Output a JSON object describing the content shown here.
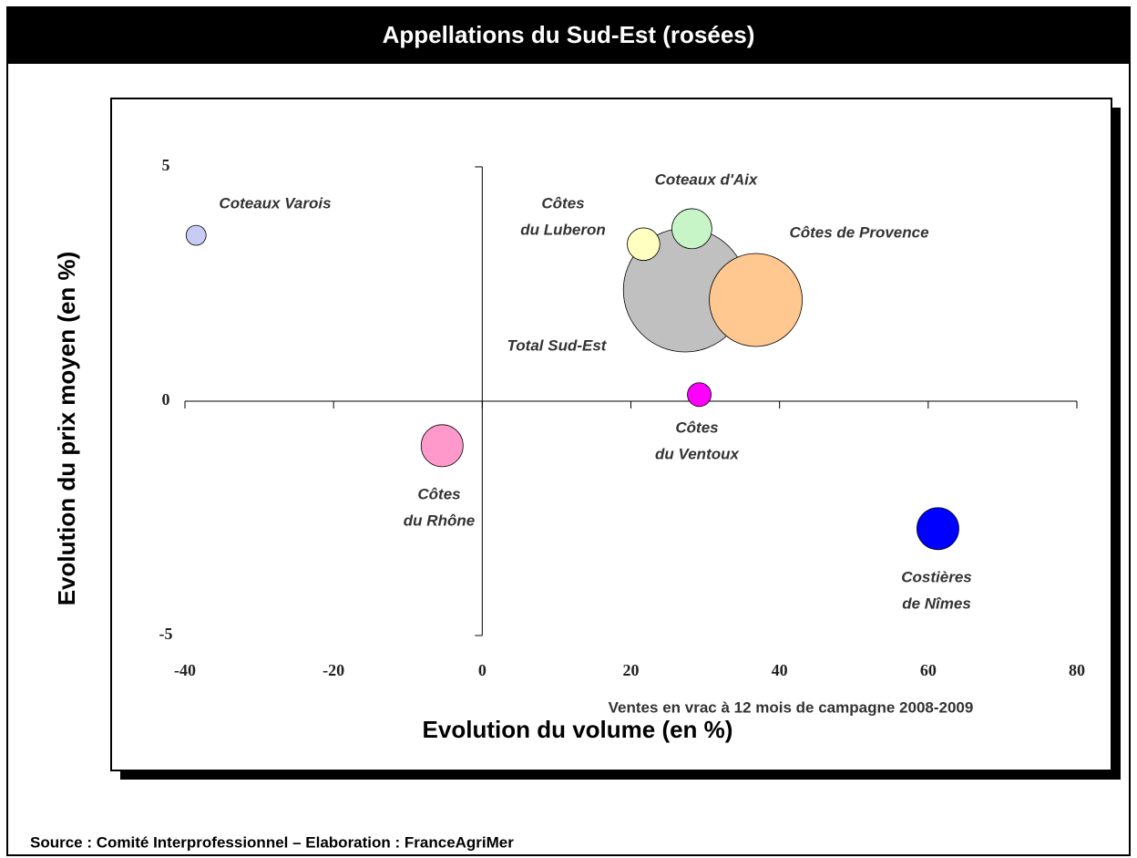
{
  "chart_data": {
    "type": "bubble",
    "title": "Appellations du Sud-Est (rosées)",
    "x_label": "Evolution du volume (en %)",
    "y_label": "Evolution du prix moyen (en %)",
    "annotation": "Ventes en vrac à 12 mois de campagne 2008-2009",
    "source": "Source : Comité Interprofessionnel – Elaboration : FranceAgriMer",
    "xlim": [
      -40,
      80
    ],
    "xticks": [
      -40,
      -20,
      0,
      20,
      40,
      60,
      80
    ],
    "ylim": [
      -5,
      5
    ],
    "yticks": [
      -5,
      0,
      5
    ],
    "points": [
      {
        "label": [
          "Coteaux Varois"
        ],
        "x": -38.5,
        "y": 3.54,
        "size": 1.2,
        "color": "#c8ccf5"
      },
      {
        "label": [
          "Total Sud-Est"
        ],
        "x": 27.3,
        "y": 2.37,
        "size": 46,
        "color": "#c0c0c0"
      },
      {
        "label": [
          "Côtes de Provence"
        ],
        "x": 36.8,
        "y": 2.16,
        "size": 26,
        "color": "#ffc890"
      },
      {
        "label": [
          "Côtes",
          "du Luberon"
        ],
        "x": 21.7,
        "y": 3.35,
        "size": 3.2,
        "color": "#ffffc0"
      },
      {
        "label": [
          "Coteaux d'Aix"
        ],
        "x": 28.2,
        "y": 3.68,
        "size": 4.8,
        "color": "#c8f5c8"
      },
      {
        "label": [
          "Côtes",
          "du Ventoux"
        ],
        "x": 29.2,
        "y": 0.14,
        "size": 1.7,
        "color": "#ff00ff"
      },
      {
        "label": [
          "Côtes",
          "du Rhône"
        ],
        "x": -5.4,
        "y": -0.95,
        "size": 5.3,
        "color": "#ff99cc"
      },
      {
        "label": [
          "Costières",
          "de Nîmes"
        ],
        "x": 61.3,
        "y": -2.72,
        "size": 5.3,
        "color": "#0000ff"
      }
    ]
  }
}
